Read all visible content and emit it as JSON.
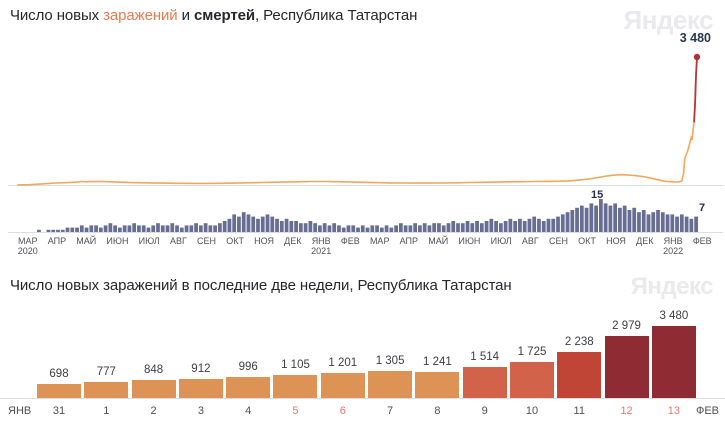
{
  "brand": {
    "logo_text": "Яндекс"
  },
  "colors": {
    "accent_infections": "#ea7950",
    "line_orange": "#efa85c",
    "line_spike_red": "#b4383c",
    "spike_dot": "#ab3339",
    "deaths_fill": "#686e93",
    "baseline_gray": "#dcdce2",
    "axis_text": "#515158",
    "red_day_text": "#e8776b",
    "bar_light_orange": "#dd9355",
    "bar_mid_red": "#d2624a",
    "bar_red": "#c14536",
    "bar_dark_red": "#8e2b33"
  },
  "top": {
    "title": {
      "prefix": "Число новых ",
      "infections": "заражений",
      "conj": " и ",
      "deaths": "смертей",
      "suffix": ", Республика Татарстан"
    },
    "peak_case_label": "3 480",
    "deaths_peak_label": "15",
    "deaths_end_label": "7"
  },
  "bottom": {
    "title": "Число новых заражений в последние две недели, Республика Татарстан",
    "month_left": "ЯНВ",
    "month_right": "ФЕВ"
  },
  "chart_data": [
    {
      "id": "infections-deaths-timeline",
      "type": "line",
      "title": "Число новых заражений и смертей, Республика Татарстан",
      "x_range_days": 714,
      "legend_position": "none",
      "grid": false,
      "months": [
        {
          "label": "МАР",
          "year": "2020"
        },
        {
          "label": "АПР"
        },
        {
          "label": "МАЙ"
        },
        {
          "label": "ИЮН"
        },
        {
          "label": "ИЮЛ"
        },
        {
          "label": "АВГ"
        },
        {
          "label": "СЕН"
        },
        {
          "label": "ОКТ"
        },
        {
          "label": "НОЯ"
        },
        {
          "label": "ДЕК"
        },
        {
          "label": "ЯНВ",
          "year": "2021"
        },
        {
          "label": "ФЕВ"
        },
        {
          "label": "МАР"
        },
        {
          "label": "АПР"
        },
        {
          "label": "МАЙ"
        },
        {
          "label": "ИЮН"
        },
        {
          "label": "ИЮЛ"
        },
        {
          "label": "АВГ"
        },
        {
          "label": "СЕН"
        },
        {
          "label": "ОКТ"
        },
        {
          "label": "НОЯ"
        },
        {
          "label": "ДЕК"
        },
        {
          "label": "ЯНВ",
          "year": "2022"
        },
        {
          "label": "ФЕВ"
        }
      ],
      "series": [
        {
          "name": "заражений",
          "render": "line",
          "color": "#efa85c",
          "spike_color": "#b4383c",
          "spike_from_value": 1725,
          "max_value": 3480,
          "max_label": "3 480",
          "points": [
            [
              0,
              2
            ],
            [
              12,
              8
            ],
            [
              25,
              30
            ],
            [
              40,
              55
            ],
            [
              55,
              70
            ],
            [
              62,
              80
            ],
            [
              68,
              94
            ],
            [
              72,
              86
            ],
            [
              76,
              98
            ],
            [
              80,
              90
            ],
            [
              84,
              97
            ],
            [
              90,
              93
            ],
            [
              97,
              88
            ],
            [
              105,
              80
            ],
            [
              115,
              71
            ],
            [
              125,
              63
            ],
            [
              138,
              57
            ],
            [
              152,
              51
            ],
            [
              168,
              47
            ],
            [
              185,
              44
            ],
            [
              200,
              44
            ],
            [
              214,
              47
            ],
            [
              228,
              53
            ],
            [
              242,
              60
            ],
            [
              256,
              68
            ],
            [
              270,
              77
            ],
            [
              284,
              85
            ],
            [
              298,
              91
            ],
            [
              310,
              95
            ],
            [
              322,
              96
            ],
            [
              334,
              91
            ],
            [
              348,
              84
            ],
            [
              362,
              74
            ],
            [
              376,
              65
            ],
            [
              390,
              58
            ],
            [
              404,
              54
            ],
            [
              418,
              52
            ],
            [
              432,
              52
            ],
            [
              446,
              54
            ],
            [
              460,
              60
            ],
            [
              474,
              67
            ],
            [
              488,
              74
            ],
            [
              502,
              80
            ],
            [
              516,
              86
            ],
            [
              530,
              91
            ],
            [
              544,
              95
            ],
            [
              558,
              99
            ],
            [
              570,
              104
            ],
            [
              580,
              113
            ],
            [
              590,
              132
            ],
            [
              600,
              162
            ],
            [
              610,
              203
            ],
            [
              618,
              240
            ],
            [
              626,
              266
            ],
            [
              633,
              280
            ],
            [
              640,
              274
            ],
            [
              648,
              258
            ],
            [
              656,
              234
            ],
            [
              664,
              196
            ],
            [
              671,
              155
            ],
            [
              677,
              118
            ],
            [
              683,
              96
            ],
            [
              689,
              86
            ],
            [
              694,
              82
            ],
            [
              698,
              110
            ],
            [
              700,
              330
            ],
            [
              701,
              698
            ],
            [
              702,
              777
            ],
            [
              703,
              848
            ],
            [
              704,
              912
            ],
            [
              705,
              996
            ],
            [
              706,
              1105
            ],
            [
              707,
              1201
            ],
            [
              708,
              1305
            ],
            [
              709,
              1241
            ],
            [
              710,
              1514
            ],
            [
              711,
              1725
            ],
            [
              712,
              2238
            ],
            [
              713,
              2979
            ],
            [
              714,
              3480
            ]
          ]
        },
        {
          "name": "смертей",
          "render": "bars",
          "color": "#686e93",
          "max_value": 15,
          "peak_label": "15",
          "end_label": "7",
          "values": [
            0,
            0,
            0,
            0,
            1,
            0,
            1,
            1,
            1,
            1,
            2,
            2,
            2,
            3,
            2,
            3,
            3,
            2,
            3,
            4,
            3,
            2,
            3,
            3,
            4,
            3,
            3,
            2,
            3,
            4,
            3,
            3,
            4,
            3,
            2,
            3,
            3,
            4,
            3,
            4,
            3,
            3,
            4,
            5,
            6,
            8,
            7,
            9,
            8,
            7,
            6,
            7,
            8,
            7,
            6,
            5,
            6,
            5,
            5,
            4,
            4,
            5,
            4,
            3,
            4,
            3,
            4,
            3,
            2,
            3,
            3,
            2,
            3,
            2,
            3,
            3,
            2,
            3,
            2,
            3,
            4,
            3,
            3,
            4,
            3,
            4,
            3,
            4,
            4,
            3,
            4,
            5,
            4,
            4,
            5,
            4,
            5,
            4,
            5,
            6,
            5,
            4,
            5,
            6,
            5,
            6,
            5,
            6,
            7,
            6,
            5,
            6,
            6,
            7,
            8,
            9,
            10,
            11,
            12,
            11,
            13,
            12,
            15,
            13,
            12,
            13,
            11,
            12,
            10,
            11,
            9,
            10,
            8,
            9,
            10,
            9,
            8,
            8,
            7,
            8,
            7,
            6,
            7
          ]
        }
      ]
    },
    {
      "id": "last-two-weeks",
      "type": "bar",
      "title": "Число новых заражений в последние две недели, Республика Татарстан",
      "month_left": "ЯНВ",
      "month_right": "ФЕВ",
      "categories": [
        "31",
        "1",
        "2",
        "3",
        "4",
        "5",
        "6",
        "7",
        "8",
        "9",
        "10",
        "11",
        "12",
        "13"
      ],
      "red_days": [
        "5",
        "6",
        "12",
        "13"
      ],
      "values": [
        698,
        777,
        848,
        912,
        996,
        1105,
        1201,
        1305,
        1241,
        1514,
        1725,
        2238,
        2979,
        3480
      ],
      "value_labels": [
        "698",
        "777",
        "848",
        "912",
        "996",
        "1 105",
        "1 201",
        "1 305",
        "1 241",
        "1 514",
        "1 725",
        "2 238",
        "2 979",
        "3 480"
      ],
      "bar_colors": [
        "#dd9355",
        "#dd9355",
        "#dd9355",
        "#dd9355",
        "#dd9355",
        "#dd9355",
        "#dd9355",
        "#dd9355",
        "#dd9355",
        "#d2624a",
        "#d2624a",
        "#c14536",
        "#8e2b33",
        "#8e2b33"
      ],
      "ylim": [
        0,
        3480
      ],
      "grid": false
    }
  ]
}
